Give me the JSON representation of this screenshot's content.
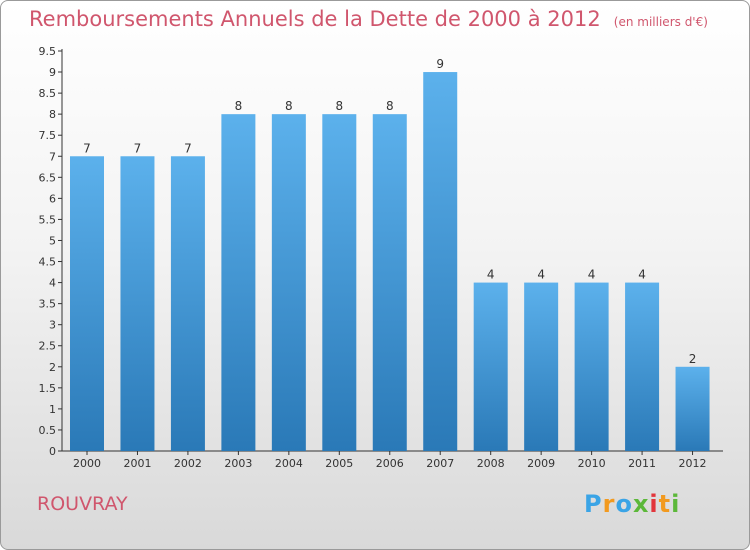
{
  "header": {
    "title": "Remboursements Annuels de la Dette de 2000 à 2012",
    "unit": "(en milliers d'€)"
  },
  "footer": {
    "commune": "ROUVRAY",
    "logo_letters": [
      "P",
      "r",
      "o",
      "x",
      "i",
      "t",
      "i"
    ],
    "logo_colors": [
      "#3aa4e6",
      "#f29a1f",
      "#3aa4e6",
      "#5cb83a",
      "#e2363c",
      "#f29a1f",
      "#5cb83a"
    ]
  },
  "colors": {
    "bar_top": "#5cb1ec",
    "bar_bottom": "#2a79b7",
    "title": "#d0566d"
  },
  "chart_data": {
    "type": "bar",
    "categories": [
      "2000",
      "2001",
      "2002",
      "2003",
      "2004",
      "2005",
      "2006",
      "2007",
      "2008",
      "2009",
      "2010",
      "2011",
      "2012"
    ],
    "values": [
      7,
      7,
      7,
      8,
      8,
      8,
      8,
      9,
      4,
      4,
      4,
      4,
      2
    ],
    "data_labels": [
      "7",
      "7",
      "7",
      "8",
      "8",
      "8",
      "8",
      "9",
      "4",
      "4",
      "4",
      "4",
      "2"
    ],
    "yticks": [
      "0",
      "0.5",
      "1",
      "1.5",
      "2",
      "2.5",
      "3",
      "3.5",
      "4",
      "4.5",
      "5",
      "5.5",
      "6",
      "6.5",
      "7",
      "7.5",
      "8",
      "8.5",
      "9",
      "9.5"
    ],
    "ylim": [
      0,
      9.5
    ],
    "grid": false
  }
}
